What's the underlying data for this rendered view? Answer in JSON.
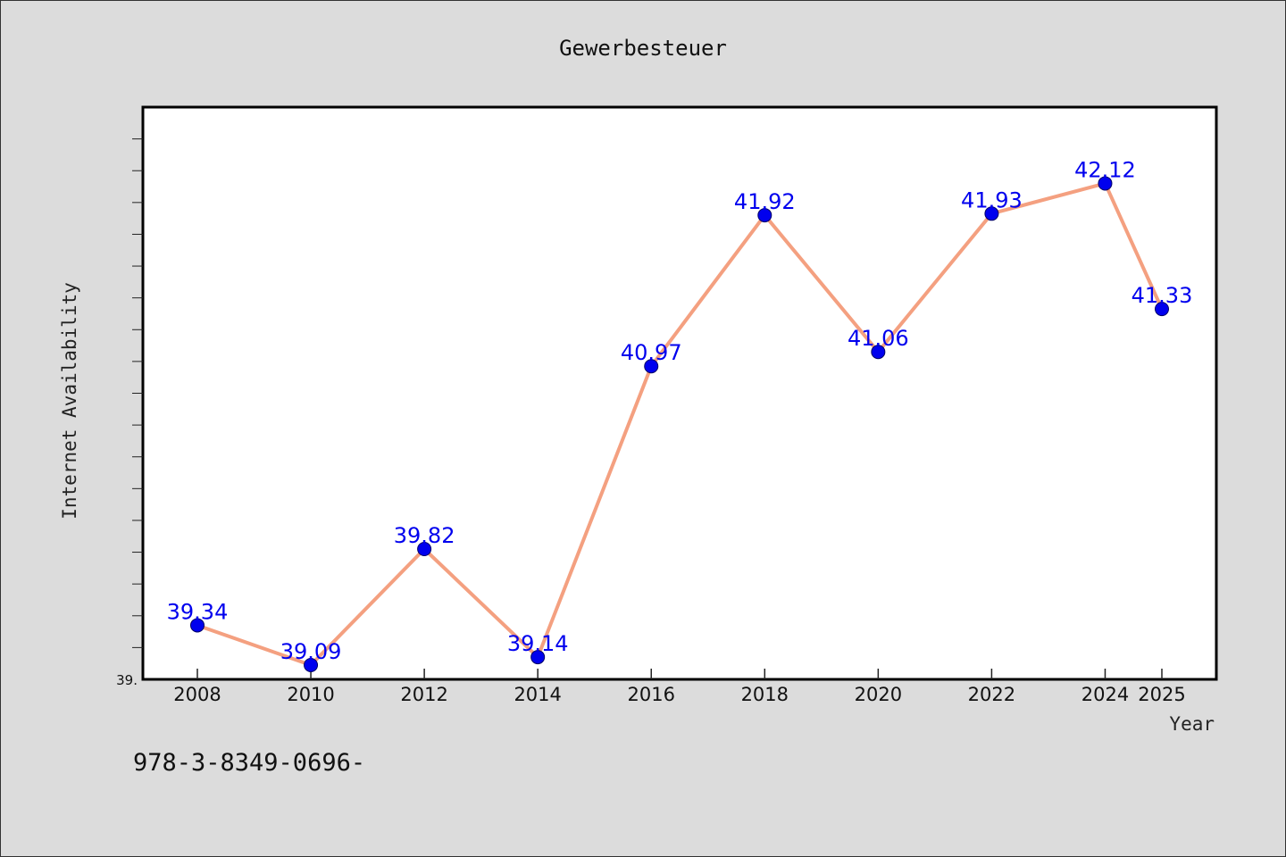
{
  "chart_data": {
    "type": "line",
    "title": "Gewerbesteuer",
    "xlabel": "Year",
    "ylabel": "Internet Availability",
    "x": [
      2008,
      2010,
      2012,
      2014,
      2016,
      2018,
      2020,
      2022,
      2024,
      2025
    ],
    "x_tick_labels": [
      "2008",
      "2010",
      "2012",
      "2014",
      "2016",
      "2018",
      "2020",
      "2022",
      "2024",
      "2025"
    ],
    "series": [
      {
        "values": [
          39.34,
          39.09,
          39.82,
          39.14,
          40.97,
          41.92,
          41.06,
          41.93,
          42.12,
          41.33
        ],
        "labels": [
          "39.34",
          "39.09",
          "39.82",
          "39.14",
          "40.97",
          "41.92",
          "41.06",
          "41.93",
          "42.12",
          "41.33"
        ]
      }
    ],
    "ylim": [
      39.0,
      42.6
    ],
    "y_tick_label": "39.",
    "y_minor_tick_step": 0.2,
    "grid": false,
    "line_color": "#f4a080",
    "marker_color": "#0000ee",
    "label_color": "#0000ee",
    "plot_background": "#ffffff",
    "figure_background": "#dcdcdc"
  },
  "footnote": "978-3-8349-0696-"
}
